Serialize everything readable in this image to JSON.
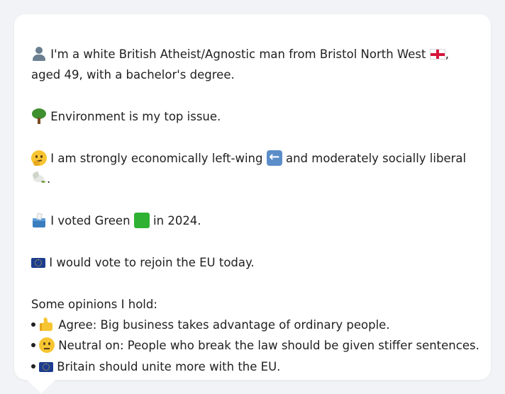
{
  "profile": {
    "intro_text_1": "I'm a white British Atheist/Agnostic man from Bristol North West",
    "intro_text_2": ",",
    "intro_line_2": "aged 49, with a bachelor's degree.",
    "top_issue": "Environment is my top issue.",
    "politics_1": "I am strongly economically left-wing",
    "politics_2": "and moderately socially liberal",
    "politics_line_2": ".",
    "vote_1": "I voted Green",
    "vote_2": "in 2024.",
    "eu": "I would vote to rejoin the EU today.",
    "opinions_heading": "Some opinions I hold:",
    "opinions": [
      {
        "icon": "thumbs-up-icon",
        "text": "Agree: Big business takes advantage of ordinary people."
      },
      {
        "icon": "neutral-face-icon",
        "text": "Neutral on: People who break the law should be given stiffer sentences."
      },
      {
        "icon": "eu-flag-icon",
        "text": "Britain should unite more with the EU."
      }
    ]
  },
  "colors": {
    "background": "#f1f3f6",
    "card": "#ffffff",
    "text": "#212121",
    "green_party": "#2fb234",
    "eu_blue": "#1d3c8f"
  }
}
